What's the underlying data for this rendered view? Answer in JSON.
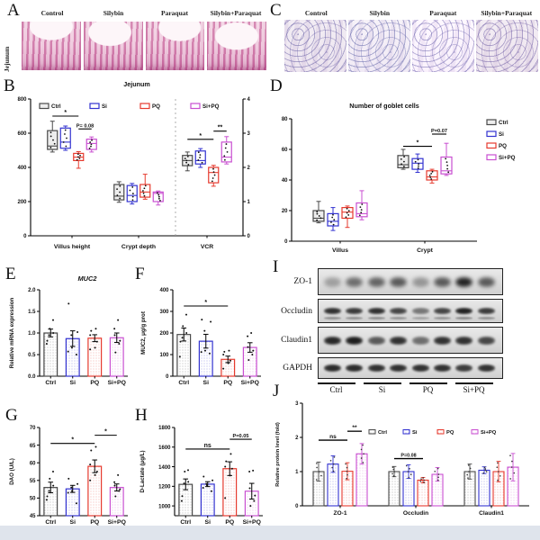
{
  "figure": {
    "panel_labels": {
      "A": "A",
      "B": "B",
      "C": "C",
      "D": "D",
      "E": "E",
      "F": "F",
      "G": "G",
      "H": "H",
      "I": "I",
      "J": "J"
    }
  },
  "colors": {
    "ctrl": "#4a4a4a",
    "si": "#3232d0",
    "pq": "#e63a2e",
    "sipq": "#c94fd1"
  },
  "histology": {
    "A": {
      "row_label": "Jejunum",
      "columns": [
        "Control",
        "Silybin",
        "Paraquat",
        "Silybin+Paraquat"
      ]
    },
    "C": {
      "columns": [
        "Control",
        "Silybin",
        "Paraquat",
        "Silybin+Paraquat"
      ]
    }
  },
  "western_blot": {
    "panel": "I",
    "rows": [
      {
        "label": "ZO-1",
        "intensities": [
          0.3,
          0.55,
          0.6,
          0.65,
          0.35,
          0.65,
          0.92,
          0.65
        ],
        "doublet": false
      },
      {
        "label": "Occludin",
        "intensities": [
          0.85,
          0.8,
          0.85,
          0.75,
          0.5,
          0.75,
          0.92,
          0.8
        ],
        "doublet": true
      },
      {
        "label": "Claudin1",
        "intensities": [
          0.9,
          0.95,
          0.65,
          0.85,
          0.55,
          0.85,
          0.85,
          0.75
        ],
        "doublet": false
      },
      {
        "label": "GAPDH",
        "intensities": [
          0.88,
          0.88,
          0.85,
          0.85,
          0.85,
          0.85,
          0.8,
          0.85
        ],
        "doublet": false
      }
    ],
    "lane_groups": [
      "Ctrl",
      "Si",
      "PQ",
      "Si+PQ"
    ]
  },
  "chart_data": [
    {
      "panel": "B",
      "type": "box",
      "title": "Jejunum",
      "legend": [
        "Ctrl",
        "Si",
        "PQ",
        "Si+PQ"
      ],
      "series_keys": [
        "ctrl",
        "si",
        "pq",
        "sipq"
      ],
      "left_axis": {
        "min": 0,
        "max": 800,
        "ticks": [
          0,
          200,
          400,
          600,
          800
        ]
      },
      "right_axis": {
        "min": 0,
        "max": 4,
        "ticks": [
          0,
          1,
          2,
          3,
          4
        ]
      },
      "categories": [
        {
          "label": "Villus height",
          "axis": "left",
          "boxes": {
            "ctrl": [
              490,
              505,
              525,
              615,
              670
            ],
            "si": [
              500,
              512,
              548,
              630,
              642
            ],
            "pq": [
              395,
              440,
              460,
              482,
              492
            ],
            "sipq": [
              490,
              505,
              540,
              565,
              578
            ]
          }
        },
        {
          "label": "Crypt depth",
          "axis": "left",
          "boxes": {
            "ctrl": [
              196,
              210,
              232,
              300,
              316
            ],
            "si": [
              186,
              200,
              236,
              294,
              306
            ],
            "pq": [
              214,
              226,
              256,
              300,
              360
            ],
            "sipq": [
              180,
              200,
              248,
              256,
              262
            ]
          }
        },
        {
          "label": "VCR",
          "axis": "right",
          "boxes": {
            "ctrl": [
              1.9,
              2.05,
              2.2,
              2.35,
              2.45
            ],
            "si": [
              2.0,
              2.1,
              2.2,
              2.48,
              2.55
            ],
            "pq": [
              1.45,
              1.55,
              1.85,
              2.0,
              2.06
            ],
            "sipq": [
              2.1,
              2.16,
              2.3,
              2.74,
              2.9
            ]
          }
        }
      ],
      "significance": [
        {
          "cat": 0,
          "from": "ctrl",
          "to": "pq",
          "label": "*",
          "axis": "left",
          "y": 700
        },
        {
          "cat": 0,
          "from": "pq",
          "to": "sipq",
          "label": "P= 0.08",
          "axis": "left",
          "y": 625
        },
        {
          "cat": 2,
          "from": "ctrl",
          "to": "pq",
          "label": "*",
          "axis": "right",
          "y": 2.82
        },
        {
          "cat": 2,
          "from": "pq",
          "to": "sipq",
          "label": "**",
          "axis": "right",
          "y": 3.06
        }
      ]
    },
    {
      "panel": "D",
      "type": "box",
      "title": "Number of goblet cells",
      "legend": [
        "Ctrl",
        "Si",
        "PQ",
        "Si+PQ"
      ],
      "series_keys": [
        "ctrl",
        "si",
        "pq",
        "sipq"
      ],
      "left_axis": {
        "min": 0,
        "max": 80,
        "ticks": [
          0,
          20,
          40,
          60,
          80
        ]
      },
      "categories": [
        {
          "label": "Villus",
          "axis": "left",
          "boxes": {
            "ctrl": [
              12,
              13,
              15,
              20,
              26
            ],
            "si": [
              7,
              10,
              13,
              18,
              22
            ],
            "pq": [
              9,
              15,
              19,
              22,
              23
            ],
            "sipq": [
              14,
              16,
              18,
              25,
              33
            ]
          }
        },
        {
          "label": "Crypt",
          "axis": "left",
          "boxes": {
            "ctrl": [
              47,
              48,
              50,
              56,
              60
            ],
            "si": [
              45,
              47,
              51,
              54,
              57
            ],
            "pq": [
              38,
              40,
              42,
              46,
              47
            ],
            "sipq": [
              43,
              44,
              46,
              55,
              64
            ]
          }
        }
      ],
      "significance": [
        {
          "cat": 1,
          "from": "ctrl",
          "to": "pq",
          "label": "*",
          "axis": "left",
          "y": 62
        },
        {
          "cat": 1,
          "from": "pq",
          "to": "sipq",
          "label": "P=0.07",
          "axis": "left",
          "y": 70
        }
      ]
    },
    {
      "panel": "E",
      "type": "bar",
      "title": "MUC2",
      "title_italic": true,
      "ylabel": "Relative mRNA expression",
      "categories": [
        "Ctrl",
        "Si",
        "PQ",
        "Si+PQ"
      ],
      "values": [
        1.0,
        0.87,
        0.88,
        0.89
      ],
      "errors": [
        0.09,
        0.18,
        0.08,
        0.11
      ],
      "points": [
        [
          0.75,
          0.82,
          0.95,
          1.0,
          1.1,
          1.3
        ],
        [
          0.5,
          0.57,
          0.66,
          0.95,
          1.02,
          1.68
        ],
        [
          0.62,
          0.66,
          0.8,
          0.95,
          1.05,
          1.1
        ],
        [
          0.55,
          0.75,
          0.82,
          0.95,
          1.1,
          1.3
        ]
      ],
      "axis": {
        "min": 0,
        "max": 2,
        "ticks": [
          0,
          0.5,
          1,
          1.5,
          2
        ],
        "decimals": 1
      },
      "significance": []
    },
    {
      "panel": "F",
      "type": "bar",
      "ylabel": "MUC2, μg/g prot",
      "categories": [
        "Ctrl",
        "Si",
        "PQ",
        "Si+PQ"
      ],
      "values": [
        193,
        162,
        78,
        133
      ],
      "errors": [
        30,
        32,
        15,
        22
      ],
      "points": [
        [
          90,
          160,
          178,
          200,
          232,
          285
        ],
        [
          105,
          112,
          118,
          210,
          252,
          262
        ],
        [
          35,
          60,
          72,
          100,
          113,
          118
        ],
        [
          75,
          100,
          118,
          135,
          185,
          200
        ]
      ],
      "axis": {
        "min": 0,
        "max": 400,
        "ticks": [
          0,
          100,
          200,
          300,
          400
        ]
      },
      "significance": [
        {
          "from": 0,
          "to": 2,
          "label": "*",
          "y": 325
        }
      ]
    },
    {
      "panel": "G",
      "type": "bar",
      "ylabel": "DAO (U/L)",
      "categories": [
        "Ctrl",
        "Si",
        "PQ",
        "Si+PQ"
      ],
      "values": [
        53,
        52.6,
        59,
        53
      ],
      "errors": [
        1.5,
        1.0,
        1.8,
        1.0
      ],
      "points": [
        [
          49.5,
          50.5,
          52,
          53.5,
          55.5,
          57.5
        ],
        [
          48.5,
          51.5,
          52,
          53,
          54,
          55.5
        ],
        [
          55,
          56.5,
          57.5,
          59.5,
          63.5,
          64.5
        ],
        [
          50.5,
          52,
          52.5,
          53.5,
          54.5,
          56.5
        ]
      ],
      "axis": {
        "min": 45,
        "max": 70,
        "ticks": [
          45,
          50,
          55,
          60,
          65,
          70
        ]
      },
      "significance": [
        {
          "from": 0,
          "to": 2,
          "label": "*",
          "y": 65.5
        },
        {
          "from": 2,
          "to": 3,
          "label": "*",
          "y": 67.8
        }
      ]
    },
    {
      "panel": "H",
      "type": "bar",
      "ylabel": "D-Lactate (μg/L)",
      "categories": [
        "Ctrl",
        "Si",
        "PQ",
        "Si+PQ"
      ],
      "values": [
        1220,
        1222,
        1380,
        1150
      ],
      "errors": [
        55,
        25,
        70,
        80
      ],
      "points": [
        [
          1050,
          1100,
          1230,
          1245,
          1350,
          1365
        ],
        [
          1150,
          1185,
          1210,
          1225,
          1260,
          1300
        ],
        [
          1080,
          1310,
          1380,
          1400,
          1455,
          1530
        ],
        [
          1000,
          1050,
          1105,
          1180,
          1350,
          1360
        ]
      ],
      "axis": {
        "min": 900,
        "max": 1800,
        "ticks": [
          1000,
          1200,
          1400,
          1600,
          1800
        ]
      },
      "significance": [
        {
          "from": 0,
          "to": 2,
          "label": "ns",
          "y": 1580
        },
        {
          "from": 2,
          "to": 3,
          "label": "P=0.05",
          "y": 1680
        }
      ]
    },
    {
      "panel": "J",
      "type": "grouped_bar",
      "ylabel": "Relative protein level (fold)",
      "legend": [
        "Ctrl",
        "Si",
        "PQ",
        "Si+PQ"
      ],
      "series_keys": [
        "ctrl",
        "si",
        "pq",
        "sipq"
      ],
      "categories": [
        "ZO-1",
        "Occludin",
        "Claudin1"
      ],
      "series": [
        {
          "name": "Ctrl",
          "values": [
            1.0,
            1.0,
            1.0
          ],
          "errors": [
            0.28,
            0.15,
            0.22
          ]
        },
        {
          "name": "Si",
          "values": [
            1.22,
            1.0,
            1.04
          ],
          "errors": [
            0.24,
            0.2,
            0.1
          ]
        },
        {
          "name": "PQ",
          "values": [
            1.01,
            0.75,
            1.0
          ],
          "errors": [
            0.25,
            0.08,
            0.3
          ]
        },
        {
          "name": "Si+PQ",
          "values": [
            1.52,
            0.92,
            1.13
          ],
          "errors": [
            0.3,
            0.2,
            0.4
          ]
        }
      ],
      "axis": {
        "min": 0,
        "max": 3,
        "ticks": [
          0,
          1,
          2,
          3
        ]
      },
      "significance": [
        {
          "cat": 0,
          "from": 0,
          "to": 2,
          "label": "ns",
          "y": 1.92
        },
        {
          "cat": 0,
          "from": 2,
          "to": 3,
          "label": "**",
          "y": 2.18
        },
        {
          "cat": 1,
          "from": 0,
          "to": 2,
          "label": "P=0.08",
          "y": 1.38
        }
      ]
    }
  ]
}
